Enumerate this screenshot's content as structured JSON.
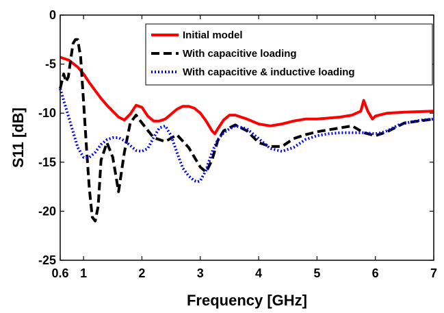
{
  "chart_data": {
    "type": "line",
    "title": "",
    "xlabel": "Frequency [GHz]",
    "ylabel": "S11 [dB]",
    "xlim": [
      0.6,
      7
    ],
    "ylim": [
      -25,
      0
    ],
    "xticks": [
      0.6,
      1,
      2,
      3,
      4,
      5,
      6,
      7
    ],
    "xtick_labels": [
      "0.6",
      "1",
      "2",
      "3",
      "4",
      "5",
      "6",
      "7"
    ],
    "yticks": [
      0,
      -5,
      -10,
      -15,
      -20,
      -25
    ],
    "ytick_labels": [
      "0",
      "-5",
      "-10",
      "-15",
      "-20",
      "-25"
    ],
    "grid": false,
    "legend_position": "top-right",
    "series": [
      {
        "name": "Initial model",
        "color": "#ff0000",
        "style": "solid",
        "x": [
          0.6,
          0.75,
          0.9,
          1.0,
          1.1,
          1.2,
          1.3,
          1.4,
          1.5,
          1.6,
          1.7,
          1.8,
          1.9,
          2.0,
          2.1,
          2.2,
          2.3,
          2.4,
          2.5,
          2.6,
          2.7,
          2.8,
          2.9,
          3.0,
          3.1,
          3.2,
          3.25,
          3.3,
          3.4,
          3.5,
          3.6,
          3.8,
          4.0,
          4.2,
          4.4,
          4.6,
          4.8,
          5.0,
          5.2,
          5.4,
          5.6,
          5.75,
          5.8,
          5.87,
          5.95,
          6.0,
          6.2,
          6.5,
          7.0
        ],
        "y": [
          -4.3,
          -4.6,
          -5.3,
          -6.0,
          -6.9,
          -7.7,
          -8.5,
          -9.2,
          -9.8,
          -10.4,
          -10.7,
          -10.1,
          -9.2,
          -9.4,
          -10.3,
          -10.8,
          -10.8,
          -10.6,
          -10.1,
          -9.6,
          -9.3,
          -9.3,
          -9.5,
          -10.0,
          -10.8,
          -11.8,
          -12.1,
          -11.6,
          -10.7,
          -10.2,
          -10.2,
          -10.6,
          -11.1,
          -11.3,
          -11.1,
          -10.8,
          -10.6,
          -10.6,
          -10.5,
          -10.4,
          -10.2,
          -9.8,
          -8.7,
          -9.8,
          -10.6,
          -10.3,
          -10.0,
          -9.9,
          -9.8
        ]
      },
      {
        "name": "With capacitive loading",
        "color": "#000000",
        "style": "dashed",
        "x": [
          0.6,
          0.66,
          0.7,
          0.74,
          0.78,
          0.82,
          0.86,
          0.9,
          0.95,
          1.0,
          1.05,
          1.1,
          1.15,
          1.2,
          1.25,
          1.3,
          1.4,
          1.5,
          1.6,
          1.7,
          1.8,
          1.9,
          2.0,
          2.2,
          2.4,
          2.6,
          2.8,
          3.0,
          3.1,
          3.2,
          3.3,
          3.4,
          3.6,
          3.8,
          4.0,
          4.2,
          4.4,
          4.6,
          4.8,
          5.0,
          5.2,
          5.4,
          5.6,
          5.8,
          6.0,
          6.2,
          6.5,
          7.0
        ],
        "y": [
          -7.5,
          -6.0,
          -6.8,
          -6.3,
          -4.5,
          -2.9,
          -2.5,
          -2.5,
          -4.3,
          -8.8,
          -13.5,
          -17.8,
          -20.6,
          -21.0,
          -19.5,
          -14.8,
          -13.0,
          -14.5,
          -18.0,
          -14.0,
          -11.0,
          -10.2,
          -11.0,
          -12.5,
          -12.9,
          -12.2,
          -13.5,
          -15.5,
          -16.0,
          -14.8,
          -12.8,
          -11.8,
          -11.2,
          -11.8,
          -13.0,
          -13.4,
          -13.4,
          -12.6,
          -12.2,
          -11.9,
          -11.7,
          -11.5,
          -11.3,
          -12.0,
          -12.3,
          -11.9,
          -11.0,
          -10.6
        ]
      },
      {
        "name": "With capacitive & inductive loading",
        "color": "#0000ff",
        "style": "dotted",
        "x": [
          0.6,
          0.7,
          0.8,
          0.9,
          1.0,
          1.1,
          1.2,
          1.3,
          1.4,
          1.5,
          1.6,
          1.7,
          1.8,
          1.9,
          2.0,
          2.1,
          2.2,
          2.3,
          2.4,
          2.5,
          2.6,
          2.7,
          2.8,
          2.9,
          2.95,
          3.0,
          3.1,
          3.2,
          3.3,
          3.4,
          3.5,
          3.6,
          3.8,
          4.0,
          4.2,
          4.4,
          4.6,
          4.8,
          5.0,
          5.2,
          5.4,
          5.6,
          5.8,
          6.0,
          6.1,
          6.2,
          6.4,
          6.6,
          6.8,
          7.0
        ],
        "y": [
          -7.5,
          -9.5,
          -11.5,
          -13.5,
          -14.5,
          -14.5,
          -14.0,
          -13.2,
          -12.7,
          -12.5,
          -12.5,
          -12.8,
          -13.3,
          -13.8,
          -13.9,
          -13.6,
          -12.5,
          -11.5,
          -11.3,
          -12.3,
          -14.0,
          -15.6,
          -16.4,
          -16.9,
          -17.0,
          -16.9,
          -15.8,
          -14.0,
          -12.7,
          -12.0,
          -11.6,
          -11.3,
          -11.6,
          -12.6,
          -13.6,
          -13.9,
          -13.5,
          -12.7,
          -12.3,
          -12.1,
          -12.0,
          -12.0,
          -12.0,
          -12.1,
          -12.0,
          -11.8,
          -11.2,
          -10.9,
          -10.7,
          -10.6
        ]
      }
    ]
  }
}
